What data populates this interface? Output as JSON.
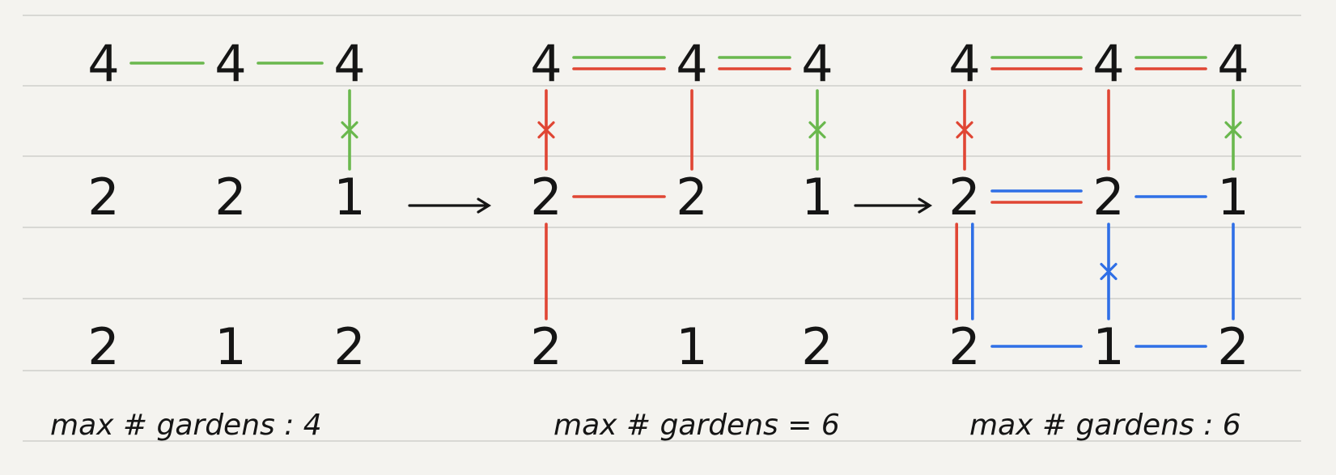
{
  "colors": {
    "green": "#6ab84e",
    "red": "#e04634",
    "blue": "#2f6fe6",
    "ink": "#151515",
    "paper": "#f4f3ef",
    "rule": "#cfcfcb"
  },
  "grid_values": [
    [
      "4",
      "4",
      "4"
    ],
    [
      "2",
      "2",
      "1"
    ],
    [
      "2",
      "1",
      "2"
    ]
  ],
  "panels": [
    {
      "caption": "max # gardens : 4",
      "edges": [
        {
          "from": [
            0,
            0
          ],
          "to": [
            0,
            1
          ],
          "color": "green",
          "offset": 0,
          "marked": false
        },
        {
          "from": [
            0,
            1
          ],
          "to": [
            0,
            2
          ],
          "color": "green",
          "offset": 0,
          "marked": false
        },
        {
          "from": [
            0,
            2
          ],
          "to": [
            1,
            2
          ],
          "color": "green",
          "offset": 0,
          "marked": true
        }
      ]
    },
    {
      "caption": "max # gardens = 6",
      "edges": [
        {
          "from": [
            0,
            0
          ],
          "to": [
            0,
            1
          ],
          "color": "green",
          "offset": -1,
          "marked": false
        },
        {
          "from": [
            0,
            0
          ],
          "to": [
            0,
            1
          ],
          "color": "red",
          "offset": 1,
          "marked": false
        },
        {
          "from": [
            0,
            1
          ],
          "to": [
            0,
            2
          ],
          "color": "green",
          "offset": -1,
          "marked": false
        },
        {
          "from": [
            0,
            1
          ],
          "to": [
            0,
            2
          ],
          "color": "red",
          "offset": 1,
          "marked": false
        },
        {
          "from": [
            0,
            2
          ],
          "to": [
            1,
            2
          ],
          "color": "green",
          "offset": 0,
          "marked": true
        },
        {
          "from": [
            0,
            0
          ],
          "to": [
            1,
            0
          ],
          "color": "red",
          "offset": 0,
          "marked": true
        },
        {
          "from": [
            0,
            1
          ],
          "to": [
            1,
            1
          ],
          "color": "red",
          "offset": 0,
          "marked": false
        },
        {
          "from": [
            1,
            0
          ],
          "to": [
            1,
            1
          ],
          "color": "red",
          "offset": 0,
          "marked": false
        },
        {
          "from": [
            1,
            0
          ],
          "to": [
            2,
            0
          ],
          "color": "red",
          "offset": 0,
          "marked": false
        }
      ]
    },
    {
      "caption": "max # gardens : 6",
      "edges": [
        {
          "from": [
            0,
            0
          ],
          "to": [
            0,
            1
          ],
          "color": "green",
          "offset": -1,
          "marked": false
        },
        {
          "from": [
            0,
            0
          ],
          "to": [
            0,
            1
          ],
          "color": "red",
          "offset": 1,
          "marked": false
        },
        {
          "from": [
            0,
            1
          ],
          "to": [
            0,
            2
          ],
          "color": "green",
          "offset": -1,
          "marked": false
        },
        {
          "from": [
            0,
            1
          ],
          "to": [
            0,
            2
          ],
          "color": "red",
          "offset": 1,
          "marked": false
        },
        {
          "from": [
            0,
            2
          ],
          "to": [
            1,
            2
          ],
          "color": "green",
          "offset": 0,
          "marked": true
        },
        {
          "from": [
            0,
            0
          ],
          "to": [
            1,
            0
          ],
          "color": "red",
          "offset": 0,
          "marked": true
        },
        {
          "from": [
            0,
            1
          ],
          "to": [
            1,
            1
          ],
          "color": "red",
          "offset": 0,
          "marked": false
        },
        {
          "from": [
            1,
            0
          ],
          "to": [
            1,
            1
          ],
          "color": "blue",
          "offset": -1,
          "marked": false
        },
        {
          "from": [
            1,
            0
          ],
          "to": [
            1,
            1
          ],
          "color": "red",
          "offset": 1,
          "marked": false
        },
        {
          "from": [
            1,
            1
          ],
          "to": [
            1,
            2
          ],
          "color": "blue",
          "offset": 0,
          "marked": false
        },
        {
          "from": [
            1,
            0
          ],
          "to": [
            2,
            0
          ],
          "color": "red",
          "offset": -1,
          "marked": false
        },
        {
          "from": [
            1,
            0
          ],
          "to": [
            2,
            0
          ],
          "color": "blue",
          "offset": 1,
          "marked": false
        },
        {
          "from": [
            1,
            1
          ],
          "to": [
            2,
            1
          ],
          "color": "blue",
          "offset": 0,
          "marked": true
        },
        {
          "from": [
            1,
            2
          ],
          "to": [
            2,
            2
          ],
          "color": "blue",
          "offset": 0,
          "marked": false
        },
        {
          "from": [
            2,
            0
          ],
          "to": [
            2,
            1
          ],
          "color": "blue",
          "offset": 0,
          "marked": false
        },
        {
          "from": [
            2,
            1
          ],
          "to": [
            2,
            2
          ],
          "color": "blue",
          "offset": 0,
          "marked": false
        }
      ]
    }
  ]
}
